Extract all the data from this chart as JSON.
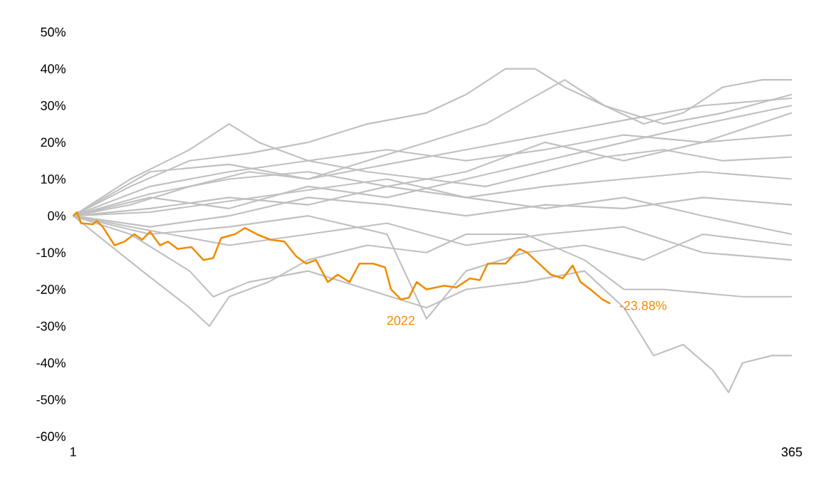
{
  "chart_data": {
    "type": "line",
    "xlim": [
      1,
      365
    ],
    "ylim": [
      -60,
      50
    ],
    "xticks": [
      1,
      365
    ],
    "yticks": [
      {
        "value": 50,
        "label": "50%"
      },
      {
        "value": 40,
        "label": "40%"
      },
      {
        "value": 30,
        "label": "30%"
      },
      {
        "value": 20,
        "label": "20%"
      },
      {
        "value": 10,
        "label": "10%"
      },
      {
        "value": 0,
        "label": "0%"
      },
      {
        "value": -10,
        "label": "-10%"
      },
      {
        "value": -20,
        "label": "-20%"
      },
      {
        "value": -30,
        "label": "-30%"
      },
      {
        "value": -40,
        "label": "-40%"
      },
      {
        "value": -50,
        "label": "-50%"
      },
      {
        "value": -60,
        "label": "-60%"
      }
    ],
    "grid": false,
    "legend": false,
    "marker": "none",
    "line_style": "solid",
    "annotations": [
      {
        "text": "-23.88%",
        "x": 273,
        "y": -23.88
      }
    ],
    "series": [
      {
        "color": "#c0c0c0",
        "x": [
          1,
          30,
          60,
          90,
          120,
          150,
          180,
          200,
          220,
          235,
          250,
          270,
          290,
          310,
          330,
          350,
          365
        ],
        "values": [
          0,
          8,
          15,
          17,
          20,
          25,
          28,
          33,
          40,
          40,
          35,
          30,
          25,
          28,
          35,
          37,
          37
        ]
      },
      {
        "color": "#c0c0c0",
        "x": [
          1,
          30,
          60,
          72,
          90,
          120,
          150,
          180,
          200,
          230,
          260,
          280,
          295,
          310,
          325,
          333,
          340,
          355,
          365
        ],
        "values": [
          0,
          -5,
          -15,
          -22,
          -18,
          -15,
          -20,
          -25,
          -20,
          -18,
          -15,
          -25,
          -38,
          -35,
          -42,
          -48,
          -40,
          -38,
          -38
        ]
      },
      {
        "color": "#c0c0c0",
        "x": [
          1,
          36,
          60,
          70,
          80,
          100,
          120,
          150,
          180,
          200,
          230,
          260,
          280,
          300,
          320,
          340,
          365
        ],
        "values": [
          0,
          -15,
          -25,
          -30,
          -22,
          -18,
          -12,
          -8,
          -10,
          -5,
          -5,
          -12,
          -20,
          -20,
          -21,
          -22,
          -22
        ]
      },
      {
        "color": "#c0c0c0",
        "x": [
          1,
          30,
          60,
          80,
          95,
          120,
          150,
          180,
          210,
          240,
          270,
          300,
          330,
          365
        ],
        "values": [
          0,
          10,
          18,
          25,
          20,
          15,
          12,
          10,
          8,
          12,
          16,
          18,
          15,
          16
        ]
      },
      {
        "color": "#c0c0c0",
        "x": [
          1,
          30,
          60,
          90,
          120,
          150,
          180,
          210,
          250,
          270,
          300,
          330,
          365
        ],
        "values": [
          0,
          3,
          8,
          12,
          10,
          15,
          20,
          25,
          37,
          30,
          25,
          28,
          33
        ]
      },
      {
        "color": "#c0c0c0",
        "x": [
          1,
          40,
          80,
          120,
          160,
          180,
          200,
          230,
          260,
          290,
          320,
          365
        ],
        "values": [
          0,
          -5,
          -3,
          0,
          -5,
          -28,
          -15,
          -10,
          -8,
          -12,
          -5,
          -8
        ]
      },
      {
        "color": "#c0c0c0",
        "x": [
          1,
          40,
          80,
          120,
          160,
          200,
          240,
          280,
          320,
          365
        ],
        "values": [
          0,
          5,
          2,
          8,
          5,
          10,
          15,
          20,
          25,
          30
        ]
      },
      {
        "color": "#c0c0c0",
        "x": [
          1,
          40,
          80,
          120,
          160,
          200,
          240,
          280,
          320,
          365
        ],
        "values": [
          0,
          -3,
          0,
          5,
          3,
          0,
          3,
          2,
          5,
          3
        ]
      },
      {
        "color": "#c0c0c0",
        "x": [
          1,
          40,
          80,
          120,
          160,
          200,
          240,
          280,
          320,
          365
        ],
        "values": [
          0,
          8,
          12,
          15,
          18,
          15,
          18,
          22,
          20,
          22
        ]
      },
      {
        "color": "#c0c0c0",
        "x": [
          1,
          40,
          80,
          120,
          160,
          200,
          240,
          280,
          320,
          365
        ],
        "values": [
          0,
          2,
          5,
          3,
          8,
          5,
          8,
          10,
          12,
          10
        ]
      },
      {
        "color": "#c0c0c0",
        "x": [
          1,
          40,
          80,
          120,
          160,
          200,
          240,
          280,
          320,
          365
        ],
        "values": [
          0,
          -4,
          -8,
          -5,
          -2,
          -8,
          -5,
          -3,
          -10,
          -12
        ]
      },
      {
        "color": "#c0c0c0",
        "x": [
          1,
          40,
          80,
          120,
          160,
          200,
          240,
          280,
          320,
          365
        ],
        "values": [
          0,
          6,
          10,
          12,
          8,
          12,
          20,
          15,
          20,
          28
        ]
      },
      {
        "color": "#c0c0c0",
        "x": [
          1,
          40,
          80,
          120,
          160,
          200,
          240,
          280,
          320,
          365
        ],
        "values": [
          0,
          1,
          4,
          7,
          10,
          5,
          2,
          5,
          0,
          -5
        ]
      },
      {
        "color": "#c0c0c0",
        "x": [
          1,
          40,
          80,
          120,
          160,
          200,
          240,
          280,
          320,
          365
        ],
        "values": [
          0,
          12,
          14,
          10,
          14,
          18,
          22,
          26,
          30,
          32
        ]
      },
      {
        "name": "2022",
        "color": "#f08c00",
        "x": [
          1,
          3,
          5,
          11,
          13,
          16,
          22,
          27,
          32,
          36,
          40,
          45,
          49,
          54,
          61,
          67,
          72,
          76,
          83,
          88,
          94,
          101,
          108,
          114,
          119,
          124,
          130,
          135,
          141,
          146,
          153,
          159,
          162,
          167,
          171,
          175,
          180,
          189,
          195,
          202,
          207,
          211,
          220,
          227,
          231,
          238,
          243,
          249,
          254,
          258,
          263,
          269,
          273
        ],
        "values": [
          0,
          1,
          -2,
          -2.3,
          -1.4,
          -3,
          -8,
          -7,
          -5,
          -6.5,
          -4.3,
          -8,
          -7,
          -9,
          -8.5,
          -12,
          -11.5,
          -6,
          -5,
          -3.3,
          -5,
          -6.5,
          -7,
          -11,
          -13,
          -12,
          -18,
          -16,
          -18,
          -13,
          -13,
          -14,
          -20,
          -22.7,
          -22.3,
          -18,
          -20,
          -19,
          -19.5,
          -17,
          -17.5,
          -13,
          -13,
          -9,
          -10,
          -13.5,
          -16,
          -17,
          -13.5,
          -18,
          -20,
          -22.7,
          -23.88
        ]
      }
    ]
  }
}
